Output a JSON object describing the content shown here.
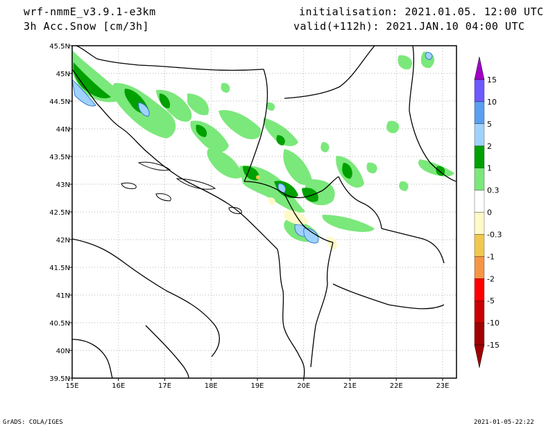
{
  "header": {
    "model": "wrf-nmmE_v3.9.1-e3km",
    "variable": "3h Acc.Snow [cm/3h]",
    "init_label": "initialisation: 2021.01.05. 12:00 UTC",
    "valid_label": "valid(+112h): 2021.JAN.10 04:00 UTC"
  },
  "footer": {
    "left": "GrADS: COLA/IGES",
    "right": "2021-01-05-22:22"
  },
  "map": {
    "lon_range": [
      15,
      23.3
    ],
    "lat_range": [
      39.5,
      45.5
    ],
    "lon_ticks": [
      {
        "v": 15,
        "label": "15E"
      },
      {
        "v": 16,
        "label": "16E"
      },
      {
        "v": 17,
        "label": "17E"
      },
      {
        "v": 18,
        "label": "18E"
      },
      {
        "v": 19,
        "label": "19E"
      },
      {
        "v": 20,
        "label": "20E"
      },
      {
        "v": 21,
        "label": "21E"
      },
      {
        "v": 22,
        "label": "22E"
      },
      {
        "v": 23,
        "label": "23E"
      }
    ],
    "lat_ticks": [
      {
        "v": 39.5,
        "label": "39.5N"
      },
      {
        "v": 40,
        "label": "40N"
      },
      {
        "v": 40.5,
        "label": "40.5N"
      },
      {
        "v": 41,
        "label": "41N"
      },
      {
        "v": 41.5,
        "label": "41.5N"
      },
      {
        "v": 42,
        "label": "42N"
      },
      {
        "v": 42.5,
        "label": "42.5N"
      },
      {
        "v": 43,
        "label": "43N"
      },
      {
        "v": 43.5,
        "label": "43.5N"
      },
      {
        "v": 44,
        "label": "44N"
      },
      {
        "v": 44.5,
        "label": "44.5N"
      },
      {
        "v": 45,
        "label": "45N"
      },
      {
        "v": 45.5,
        "label": "45.5N"
      }
    ],
    "grid": true,
    "colorbar": {
      "levels": [
        "15",
        "10",
        "5",
        "2",
        "1",
        "0.3",
        "0",
        "-0.3",
        "-1",
        "-2",
        "-5",
        "-10",
        "-15"
      ],
      "colors": [
        "#a000c8",
        "#6e5aff",
        "#5a9ff0",
        "#a0d2ff",
        "#00a000",
        "#7be87b",
        "#ffffff",
        "#fff9c8",
        "#f0c850",
        "#f59646",
        "#ff0000",
        "#c80000",
        "#a00000"
      ]
    },
    "palette": {
      "light_green": "#7be87b",
      "dark_green": "#00a000",
      "light_blue": "#a0d2ff",
      "mid_blue": "#5a9ff0",
      "pale_yellow": "#fff9c8",
      "yellow": "#f0c850"
    }
  }
}
